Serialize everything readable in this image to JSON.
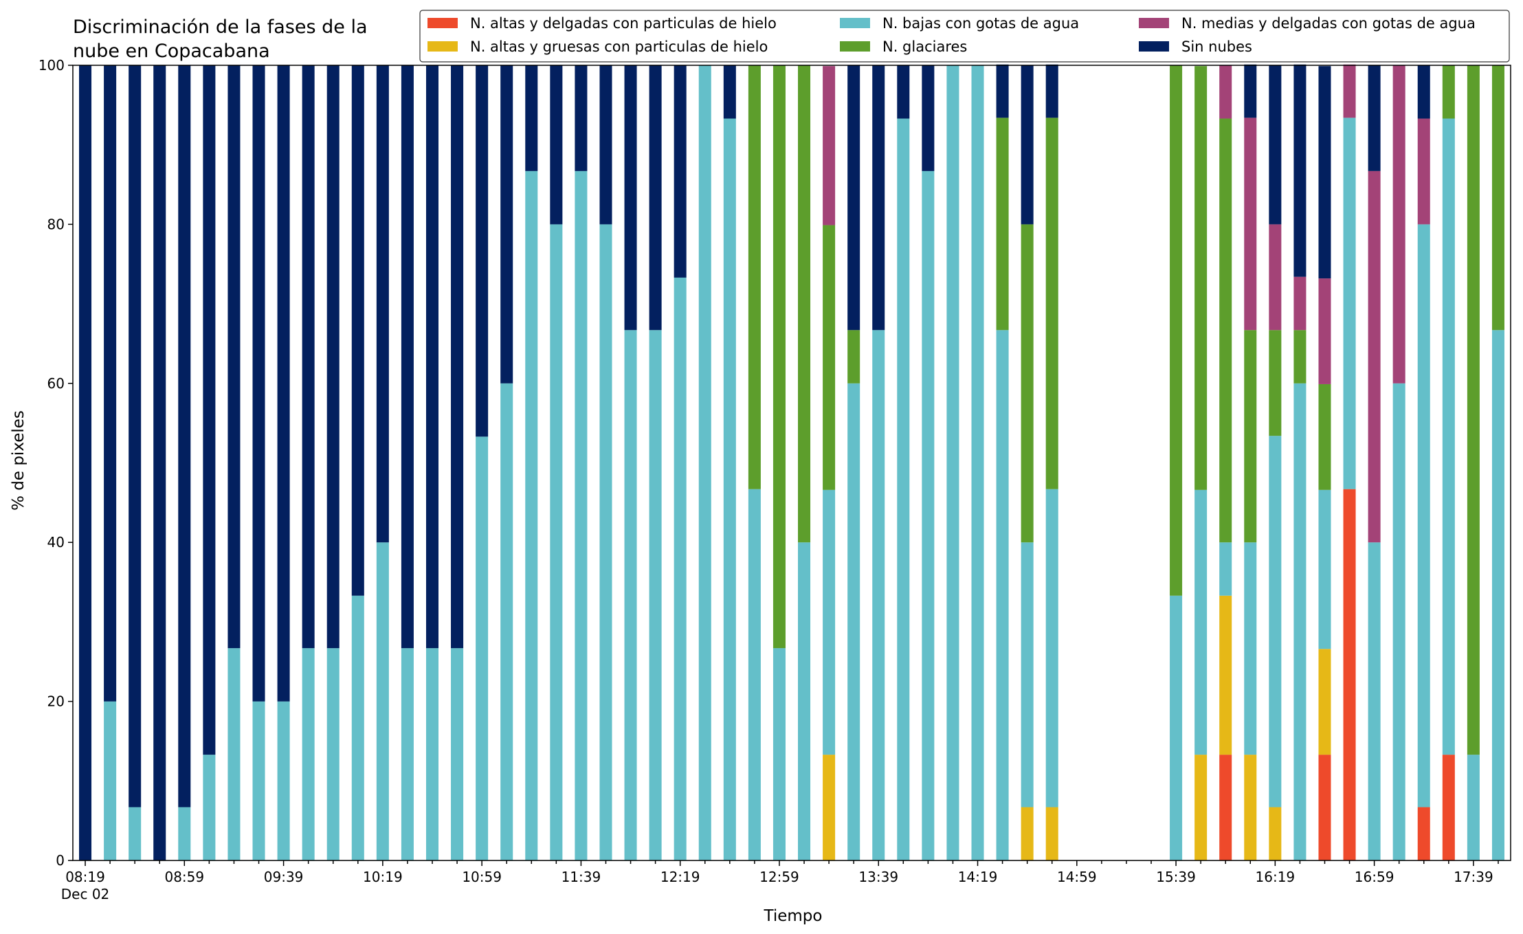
{
  "chart_data": {
    "type": "bar",
    "stacked": true,
    "title_lines": [
      "Discriminación de la fases de la",
      "nube en Copacabana"
    ],
    "xlabel": "Tiempo",
    "ylabel": "% de pixeles",
    "ylim": [
      0,
      100
    ],
    "yticks": [
      0,
      20,
      40,
      60,
      80,
      100
    ],
    "grid": false,
    "legend_position": "top-right",
    "date_label": "Dec 02",
    "x_major_labels": [
      "08:19",
      "08:59",
      "09:39",
      "10:19",
      "10:59",
      "11:39",
      "12:19",
      "12:59",
      "13:39",
      "14:19",
      "14:59",
      "15:39",
      "16:19",
      "16:59",
      "17:39"
    ],
    "x_major_slots": [
      0,
      4,
      8,
      12,
      16,
      20,
      24,
      28,
      32,
      36,
      40,
      44,
      48,
      52,
      56
    ],
    "slot_count": 58,
    "categories": [
      "08:19",
      "08:29",
      "08:39",
      "08:49",
      "08:59",
      "09:09",
      "09:19",
      "09:29",
      "09:39",
      "09:49",
      "09:59",
      "10:09",
      "10:19",
      "10:29",
      "10:39",
      "10:49",
      "10:59",
      "11:09",
      "11:19",
      "11:29",
      "11:39",
      "11:49",
      "11:59",
      "12:09",
      "12:19",
      "12:29",
      "12:39",
      "12:49",
      "12:59",
      "13:09",
      "13:19",
      "13:29",
      "13:39",
      "13:49",
      "13:59",
      "14:09",
      "14:19",
      "14:29",
      "14:39",
      "14:49",
      "14:59",
      "15:09",
      "15:19",
      "15:29",
      "15:39",
      "15:49",
      "15:59",
      "16:09",
      "16:19",
      "16:29",
      "16:39",
      "16:49",
      "16:59",
      "17:09",
      "17:19",
      "17:29",
      "17:39",
      "17:49"
    ],
    "series": [
      {
        "name": "N. altas y delgadas con particulas de hielo",
        "color": "#ee4a2b",
        "values": [
          0,
          0,
          0,
          0,
          0,
          0,
          0,
          0,
          0,
          0,
          0,
          0,
          0,
          0,
          0,
          0,
          0,
          0,
          0,
          0,
          0,
          0,
          0,
          0,
          0,
          0,
          0,
          0,
          0,
          0,
          0,
          0,
          0,
          0,
          0,
          0,
          0,
          0,
          0,
          0,
          0,
          0,
          0,
          0,
          0,
          0,
          13.3,
          0,
          0,
          0,
          13.3,
          46.7,
          0,
          0,
          6.7,
          13.3,
          0,
          0
        ]
      },
      {
        "name": "N. altas y gruesas con particulas de hielo",
        "color": "#e6b817",
        "values": [
          0,
          0,
          0,
          0,
          0,
          0,
          0,
          0,
          0,
          0,
          0,
          0,
          0,
          0,
          0,
          0,
          0,
          0,
          0,
          0,
          0,
          0,
          0,
          0,
          0,
          0,
          0,
          0,
          0,
          0,
          13.3,
          0,
          0,
          0,
          0,
          0,
          0,
          0,
          6.7,
          6.7,
          0,
          0,
          0,
          0,
          0,
          13.3,
          20,
          13.3,
          6.7,
          0,
          13.3,
          0,
          0,
          0,
          0,
          0,
          0,
          0
        ]
      },
      {
        "name": "N. bajas con gotas de agua",
        "color": "#64bfc9",
        "values": [
          0,
          20,
          6.7,
          0,
          6.7,
          13.3,
          26.7,
          20,
          20,
          26.7,
          26.7,
          33.3,
          40,
          26.7,
          26.7,
          26.7,
          53.3,
          60,
          86.7,
          80,
          86.7,
          80,
          66.7,
          66.7,
          73.3,
          100,
          93.3,
          46.7,
          26.7,
          40,
          33.3,
          60,
          66.7,
          93.3,
          86.7,
          100,
          100,
          66.7,
          33.3,
          40,
          0,
          0,
          0,
          0,
          33.3,
          33.3,
          6.7,
          26.7,
          46.7,
          60,
          20,
          46.7,
          40,
          60,
          73.3,
          80,
          13.3,
          66.7
        ]
      },
      {
        "name": "N. glaciares",
        "color": "#5d9e2c",
        "values": [
          0,
          0,
          0,
          0,
          0,
          0,
          0,
          0,
          0,
          0,
          0,
          0,
          0,
          0,
          0,
          0,
          0,
          0,
          0,
          0,
          0,
          0,
          0,
          0,
          0,
          0,
          0,
          53.3,
          73.3,
          60,
          33.3,
          6.7,
          0,
          0,
          0,
          0,
          0,
          26.7,
          40,
          46.7,
          0,
          0,
          0,
          0,
          66.7,
          53.3,
          53.3,
          26.7,
          13.3,
          6.7,
          13.3,
          0,
          0,
          0,
          0,
          6.7,
          86.7,
          33.3
        ]
      },
      {
        "name": "N. medias y delgadas con gotas de agua",
        "color": "#a34377",
        "values": [
          0,
          0,
          0,
          0,
          0,
          0,
          0,
          0,
          0,
          0,
          0,
          0,
          0,
          0,
          0,
          0,
          0,
          0,
          0,
          0,
          0,
          0,
          0,
          0,
          0,
          0,
          0,
          0,
          0,
          0,
          20,
          0,
          0,
          0,
          0,
          0,
          0,
          0,
          0,
          0,
          0,
          0,
          0,
          0,
          0,
          0,
          6.7,
          26.7,
          13.3,
          6.7,
          13.3,
          6.7,
          46.7,
          40,
          13.3,
          0,
          0,
          0
        ]
      },
      {
        "name": "Sin nubes",
        "color": "#03205f",
        "values": [
          100,
          80,
          93.3,
          100,
          93.3,
          86.7,
          73.3,
          80,
          80,
          73.3,
          73.3,
          66.7,
          60,
          73.3,
          73.3,
          73.3,
          46.7,
          40,
          13.3,
          20,
          13.3,
          20,
          33.3,
          33.3,
          26.7,
          0,
          6.7,
          0,
          0,
          0,
          0,
          33.3,
          33.3,
          6.7,
          13.3,
          0,
          0,
          6.7,
          20,
          6.7,
          0,
          0,
          0,
          0,
          0,
          0,
          0,
          6.7,
          20,
          26.7,
          26.7,
          0,
          13.3,
          0,
          6.7,
          0,
          0,
          0
        ]
      }
    ]
  }
}
